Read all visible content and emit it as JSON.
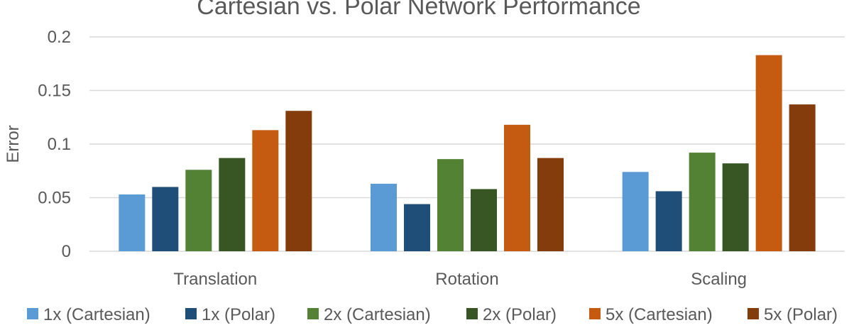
{
  "chart_data": {
    "type": "bar",
    "title": "Cartesian vs. Polar Network Performance",
    "xlabel": "",
    "ylabel": "Error",
    "ylim": [
      0,
      0.2
    ],
    "yticks": [
      "0",
      "0.05",
      "0.1",
      "0.15",
      "0.2"
    ],
    "ytick_values": [
      0,
      0.05,
      0.1,
      0.15,
      0.2
    ],
    "grid": true,
    "legend_position": "bottom",
    "categories": [
      "Translation",
      "Rotation",
      "Scaling"
    ],
    "series": [
      {
        "name": "1x (Cartesian)",
        "color": "#5b9bd5",
        "values": [
          0.053,
          0.063,
          0.074
        ]
      },
      {
        "name": "1x (Polar)",
        "color": "#1f4e79",
        "values": [
          0.06,
          0.044,
          0.056
        ]
      },
      {
        "name": "2x (Cartesian)",
        "color": "#548235",
        "values": [
          0.076,
          0.086,
          0.092
        ]
      },
      {
        "name": "2x (Polar)",
        "color": "#375623",
        "values": [
          0.087,
          0.058,
          0.082
        ]
      },
      {
        "name": "5x (Cartesian)",
        "color": "#c55a11",
        "values": [
          0.113,
          0.118,
          0.183
        ]
      },
      {
        "name": "5x (Polar)",
        "color": "#843c0c",
        "values": [
          0.131,
          0.087,
          0.137
        ]
      }
    ]
  }
}
